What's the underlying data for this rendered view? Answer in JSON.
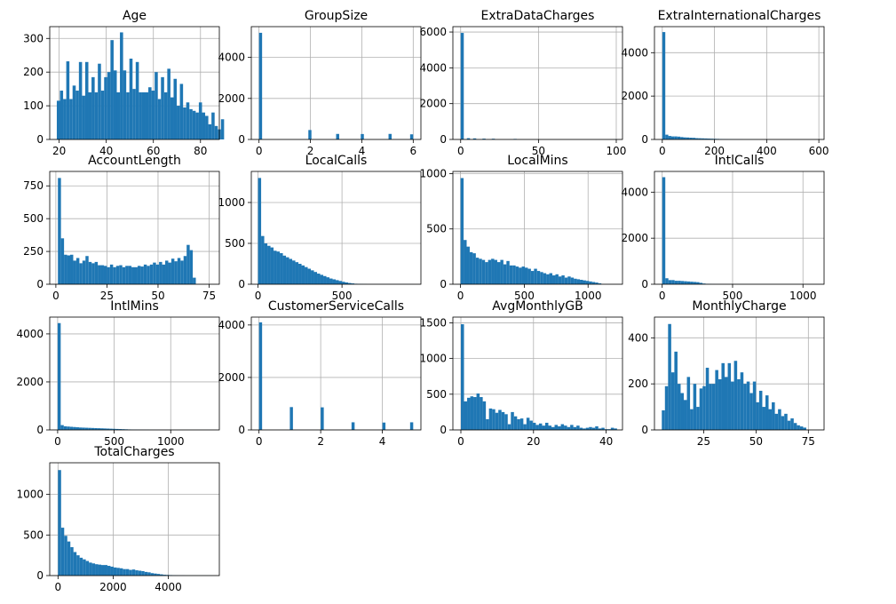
{
  "chart_data": [
    {
      "type": "bar",
      "title": "Age",
      "xlim": [
        16,
        88
      ],
      "ylim": [
        0,
        335
      ],
      "xticks": [
        20,
        40,
        60,
        80
      ],
      "yticks": [
        0,
        100,
        200,
        300
      ],
      "bin_start": 19,
      "bin_width": 1.34,
      "values": [
        115,
        145,
        120,
        232,
        120,
        160,
        145,
        230,
        130,
        230,
        140,
        185,
        140,
        225,
        145,
        185,
        200,
        295,
        205,
        140,
        318,
        205,
        140,
        240,
        150,
        230,
        140,
        140,
        140,
        155,
        145,
        200,
        120,
        185,
        140,
        210,
        125,
        180,
        100,
        165,
        95,
        110,
        90,
        85,
        80,
        110,
        80,
        70,
        45,
        80,
        40,
        30,
        60
      ]
    },
    {
      "type": "bar",
      "title": "GroupSize",
      "xlim": [
        -0.3,
        6.3
      ],
      "ylim": [
        0,
        5500
      ],
      "xticks": [
        0,
        2,
        4,
        6
      ],
      "yticks": [
        0,
        2000,
        4000
      ],
      "bin_start": 0,
      "bin_width": 0.12,
      "values": [
        5200,
        0,
        0,
        0,
        0,
        0,
        0,
        0,
        0,
        0,
        0,
        0,
        0,
        0,
        0,
        0,
        460,
        0,
        0,
        0,
        0,
        0,
        0,
        0,
        0,
        270,
        0,
        0,
        0,
        0,
        0,
        0,
        0,
        265,
        0,
        0,
        0,
        0,
        0,
        0,
        0,
        0,
        270,
        0,
        0,
        0,
        0,
        0,
        0,
        250
      ]
    },
    {
      "type": "bar",
      "title": "ExtraDataCharges",
      "xlim": [
        -5,
        104
      ],
      "ylim": [
        0,
        6300
      ],
      "xticks": [
        0,
        50,
        100
      ],
      "yticks": [
        0,
        2000,
        4000,
        6000
      ],
      "bin_start": 0,
      "bin_width": 2,
      "values": [
        5950,
        0,
        70,
        0,
        60,
        0,
        0,
        45,
        0,
        0,
        40,
        0,
        0,
        0,
        0,
        0,
        0,
        30,
        0,
        0,
        0,
        0,
        0,
        0,
        0,
        0,
        0,
        0,
        0,
        0,
        0,
        0,
        0,
        0,
        0,
        0,
        0,
        0,
        0,
        0,
        0,
        0,
        0,
        0,
        0,
        0,
        0,
        0,
        0,
        10
      ]
    },
    {
      "type": "bar",
      "title": "ExtraInternationalCharges",
      "xlim": [
        -30,
        620
      ],
      "ylim": [
        0,
        5200
      ],
      "xticks": [
        0,
        200,
        400,
        600
      ],
      "yticks": [
        0,
        2000,
        4000
      ],
      "bin_start": 0,
      "bin_width": 11.5,
      "values": [
        4950,
        220,
        160,
        140,
        140,
        130,
        110,
        95,
        90,
        80,
        75,
        60,
        55,
        50,
        45,
        40,
        35,
        30,
        25,
        20,
        15,
        12,
        10,
        8,
        7,
        6,
        5,
        4,
        4,
        3,
        3,
        3,
        2,
        2,
        2,
        2,
        2,
        2,
        1,
        1,
        1,
        1,
        1,
        1,
        1,
        1,
        1,
        1,
        1,
        1
      ]
    },
    {
      "type": "bar",
      "title": "AccountLength",
      "xlim": [
        -3,
        80
      ],
      "ylim": [
        0,
        860
      ],
      "xticks": [
        0,
        25,
        50,
        75
      ],
      "yticks": [
        0,
        250,
        500,
        750
      ],
      "bin_start": 1,
      "bin_width": 1.5,
      "values": [
        810,
        350,
        225,
        220,
        225,
        180,
        200,
        160,
        180,
        215,
        170,
        160,
        170,
        145,
        145,
        140,
        130,
        150,
        130,
        140,
        145,
        130,
        140,
        140,
        130,
        130,
        140,
        135,
        150,
        140,
        150,
        165,
        150,
        170,
        150,
        180,
        165,
        195,
        175,
        200,
        180,
        215,
        300,
        260,
        50
      ]
    },
    {
      "type": "bar",
      "title": "LocalCalls",
      "xlim": [
        -40,
        970
      ],
      "ylim": [
        0,
        1380
      ],
      "xticks": [
        0,
        500
      ],
      "yticks": [
        0,
        500,
        1000
      ],
      "bin_start": 0,
      "bin_width": 18.5,
      "values": [
        1300,
        590,
        500,
        470,
        450,
        410,
        400,
        380,
        350,
        330,
        310,
        290,
        270,
        250,
        230,
        210,
        190,
        170,
        150,
        130,
        115,
        100,
        85,
        70,
        60,
        50,
        40,
        30,
        22,
        15,
        10,
        6,
        4,
        3,
        2,
        1,
        1,
        1,
        1,
        1,
        1,
        1,
        1,
        1,
        1,
        1,
        1,
        1,
        1,
        1
      ]
    },
    {
      "type": "bar",
      "title": "LocalMins",
      "xlim": [
        -60,
        1270
      ],
      "ylim": [
        0,
        1020
      ],
      "xticks": [
        0,
        500,
        1000
      ],
      "yticks": [
        0,
        500,
        1000
      ],
      "bin_start": 0,
      "bin_width": 24,
      "values": [
        960,
        400,
        340,
        290,
        280,
        240,
        230,
        220,
        200,
        220,
        230,
        220,
        200,
        220,
        180,
        210,
        170,
        170,
        160,
        150,
        160,
        150,
        140,
        120,
        140,
        120,
        110,
        100,
        90,
        100,
        80,
        90,
        70,
        80,
        60,
        70,
        60,
        50,
        45,
        40,
        35,
        30,
        25,
        20,
        15,
        8
      ]
    },
    {
      "type": "bar",
      "title": "IntlCalls",
      "xlim": [
        -55,
        1150
      ],
      "ylim": [
        0,
        4900
      ],
      "xticks": [
        0,
        500,
        1000
      ],
      "yticks": [
        0,
        2000,
        4000
      ],
      "bin_start": 0,
      "bin_width": 22,
      "values": [
        4650,
        260,
        180,
        180,
        150,
        150,
        140,
        130,
        120,
        110,
        100,
        90,
        60,
        30,
        15,
        10,
        5,
        4,
        3,
        2,
        2,
        1,
        1,
        1,
        1,
        1,
        1,
        1,
        1,
        1,
        1,
        1,
        1,
        1,
        1,
        1,
        1,
        1,
        1,
        1,
        1,
        1,
        1,
        1,
        1,
        1,
        1,
        1,
        1,
        1
      ]
    },
    {
      "type": "bar",
      "title": "IntlMins",
      "xlim": [
        -70,
        1430
      ],
      "ylim": [
        0,
        4700
      ],
      "xticks": [
        0,
        500,
        1000
      ],
      "yticks": [
        0,
        2000,
        4000
      ],
      "bin_start": 0,
      "bin_width": 27,
      "values": [
        4450,
        200,
        150,
        140,
        130,
        120,
        110,
        100,
        95,
        90,
        85,
        80,
        75,
        70,
        65,
        60,
        55,
        50,
        45,
        40,
        35,
        30,
        25,
        20,
        15,
        12,
        10,
        8,
        6,
        5,
        4,
        3,
        2,
        2,
        2,
        2,
        1,
        1,
        1,
        1,
        1,
        1,
        1,
        1,
        1,
        1,
        1,
        1,
        1,
        1
      ]
    },
    {
      "type": "bar",
      "title": "CustomerServiceCalls",
      "xlim": [
        -0.25,
        5.25
      ],
      "ylim": [
        0,
        4300
      ],
      "xticks": [
        0,
        2,
        4
      ],
      "yticks": [
        0,
        2000,
        4000
      ],
      "bin_start": 0,
      "bin_width": 0.1,
      "values": [
        4100,
        0,
        0,
        0,
        0,
        0,
        0,
        0,
        0,
        0,
        870,
        0,
        0,
        0,
        0,
        0,
        0,
        0,
        0,
        0,
        860,
        0,
        0,
        0,
        0,
        0,
        0,
        0,
        0,
        0,
        290,
        0,
        0,
        0,
        0,
        0,
        0,
        0,
        0,
        0,
        280,
        0,
        0,
        0,
        0,
        0,
        0,
        0,
        0,
        290
      ]
    },
    {
      "type": "bar",
      "title": "AvgMonthlyGB",
      "xlim": [
        -2.2,
        44.5
      ],
      "ylim": [
        0,
        1580
      ],
      "xticks": [
        0,
        20,
        40
      ],
      "yticks": [
        0,
        500,
        1000,
        1500
      ],
      "bin_start": 0,
      "bin_width": 0.86,
      "values": [
        1480,
        400,
        450,
        470,
        460,
        510,
        460,
        400,
        150,
        300,
        290,
        240,
        280,
        250,
        220,
        80,
        250,
        190,
        150,
        160,
        80,
        170,
        130,
        100,
        70,
        90,
        60,
        100,
        60,
        40,
        70,
        50,
        80,
        60,
        40,
        70,
        40,
        60,
        30,
        20,
        30,
        40,
        30,
        50,
        20,
        30,
        10,
        10,
        30,
        20
      ]
    },
    {
      "type": "bar",
      "title": "MonthlyCharge",
      "xlim": [
        1.5,
        82.5
      ],
      "ylim": [
        0,
        490
      ],
      "xticks": [
        25,
        50,
        75
      ],
      "yticks": [
        0,
        200,
        400
      ],
      "bin_start": 5,
      "bin_width": 1.5,
      "values": [
        85,
        190,
        460,
        250,
        340,
        200,
        160,
        130,
        230,
        90,
        200,
        100,
        180,
        190,
        270,
        200,
        200,
        260,
        220,
        290,
        230,
        290,
        210,
        300,
        220,
        250,
        200,
        210,
        160,
        210,
        120,
        170,
        100,
        150,
        90,
        120,
        70,
        90,
        60,
        70,
        40,
        50,
        30,
        20,
        15,
        10
      ]
    },
    {
      "type": "bar",
      "title": "TotalCharges",
      "xlim": [
        -300,
        5850
      ],
      "ylim": [
        0,
        1390
      ],
      "xticks": [
        0,
        2000,
        4000
      ],
      "yticks": [
        0,
        500,
        1000
      ],
      "bin_start": 0,
      "bin_width": 112,
      "values": [
        1300,
        590,
        490,
        420,
        350,
        290,
        250,
        220,
        200,
        180,
        160,
        150,
        140,
        135,
        130,
        130,
        120,
        110,
        100,
        95,
        90,
        80,
        80,
        70,
        75,
        65,
        60,
        55,
        45,
        40,
        30,
        25,
        20,
        15,
        10,
        8,
        6,
        4,
        3,
        2,
        2,
        1,
        1,
        1,
        1,
        1,
        1,
        1,
        1,
        1
      ]
    }
  ]
}
